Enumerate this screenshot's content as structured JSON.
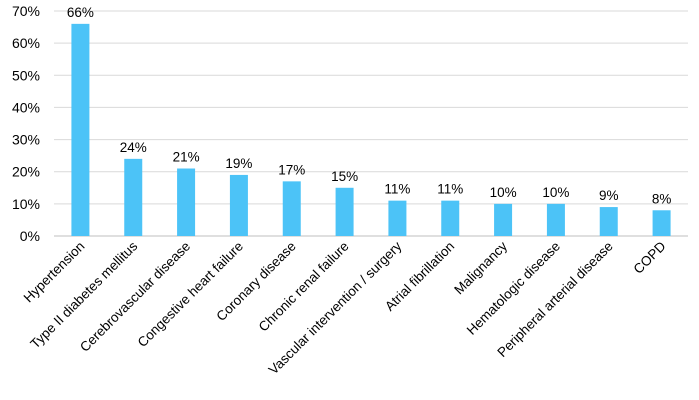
{
  "chart_data": {
    "type": "bar",
    "categories": [
      "Hypertension",
      "Type II diabetes mellitus",
      "Cerebrovascular disease",
      "Congestive heart failure",
      "Coronary disease",
      "Chronic renal failure",
      "Vascular intervention / surgery",
      "Atrial fibrillation",
      "Malignancy",
      "Hematologic disease",
      "Peripheral arterial disease",
      "COPD"
    ],
    "values": [
      66,
      24,
      21,
      19,
      17,
      15,
      11,
      11,
      10,
      10,
      9,
      8
    ],
    "data_labels": [
      "66%",
      "24%",
      "21%",
      "19%",
      "17%",
      "15%",
      "11%",
      "11%",
      "10%",
      "10%",
      "9%",
      "8%"
    ],
    "y_ticks": [
      "0%",
      "10%",
      "20%",
      "30%",
      "40%",
      "50%",
      "60%",
      "70%"
    ],
    "ylim": [
      0,
      70
    ],
    "grid": true,
    "bar_color": "#4cc3f7",
    "title": "",
    "xlabel": "",
    "ylabel": ""
  }
}
